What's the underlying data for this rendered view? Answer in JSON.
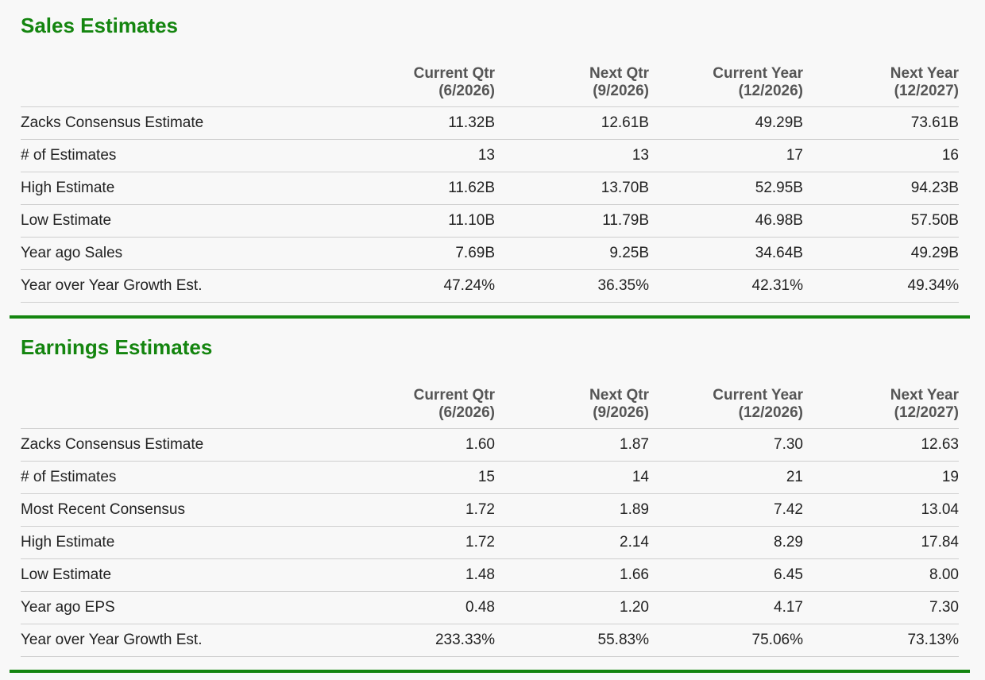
{
  "columns": [
    {
      "label": "Current Qtr",
      "period": "(6/2026)"
    },
    {
      "label": "Next Qtr",
      "period": "(9/2026)"
    },
    {
      "label": "Current Year",
      "period": "(12/2026)"
    },
    {
      "label": "Next Year",
      "period": "(12/2027)"
    }
  ],
  "sales": {
    "title": "Sales Estimates",
    "rows": [
      {
        "label": "Zacks Consensus Estimate",
        "values": [
          "11.32B",
          "12.61B",
          "49.29B",
          "73.61B"
        ]
      },
      {
        "label": "# of Estimates",
        "values": [
          "13",
          "13",
          "17",
          "16"
        ]
      },
      {
        "label": "High Estimate",
        "values": [
          "11.62B",
          "13.70B",
          "52.95B",
          "94.23B"
        ]
      },
      {
        "label": "Low Estimate",
        "values": [
          "11.10B",
          "11.79B",
          "46.98B",
          "57.50B"
        ]
      },
      {
        "label": "Year ago Sales",
        "values": [
          "7.69B",
          "9.25B",
          "34.64B",
          "49.29B"
        ]
      },
      {
        "label": "Year over Year Growth Est.",
        "values": [
          "47.24%",
          "36.35%",
          "42.31%",
          "49.34%"
        ]
      }
    ]
  },
  "earnings": {
    "title": "Earnings Estimates",
    "rows": [
      {
        "label": "Zacks Consensus Estimate",
        "values": [
          "1.60",
          "1.87",
          "7.30",
          "12.63"
        ]
      },
      {
        "label": "# of Estimates",
        "values": [
          "15",
          "14",
          "21",
          "19"
        ]
      },
      {
        "label": "Most Recent Consensus",
        "values": [
          "1.72",
          "1.89",
          "7.42",
          "13.04"
        ]
      },
      {
        "label": "High Estimate",
        "values": [
          "1.72",
          "2.14",
          "8.29",
          "17.84"
        ]
      },
      {
        "label": "Low Estimate",
        "values": [
          "1.48",
          "1.66",
          "6.45",
          "8.00"
        ]
      },
      {
        "label": "Year ago EPS",
        "values": [
          "0.48",
          "1.20",
          "4.17",
          "7.30"
        ]
      },
      {
        "label": "Year over Year Growth Est.",
        "values": [
          "233.33%",
          "55.83%",
          "75.06%",
          "73.13%"
        ]
      }
    ]
  },
  "theme": {
    "accent": "#14850f",
    "header_text": "#555555",
    "body_text": "#222222",
    "row_border": "#cfcfcf",
    "background": "#f8f8f8"
  }
}
